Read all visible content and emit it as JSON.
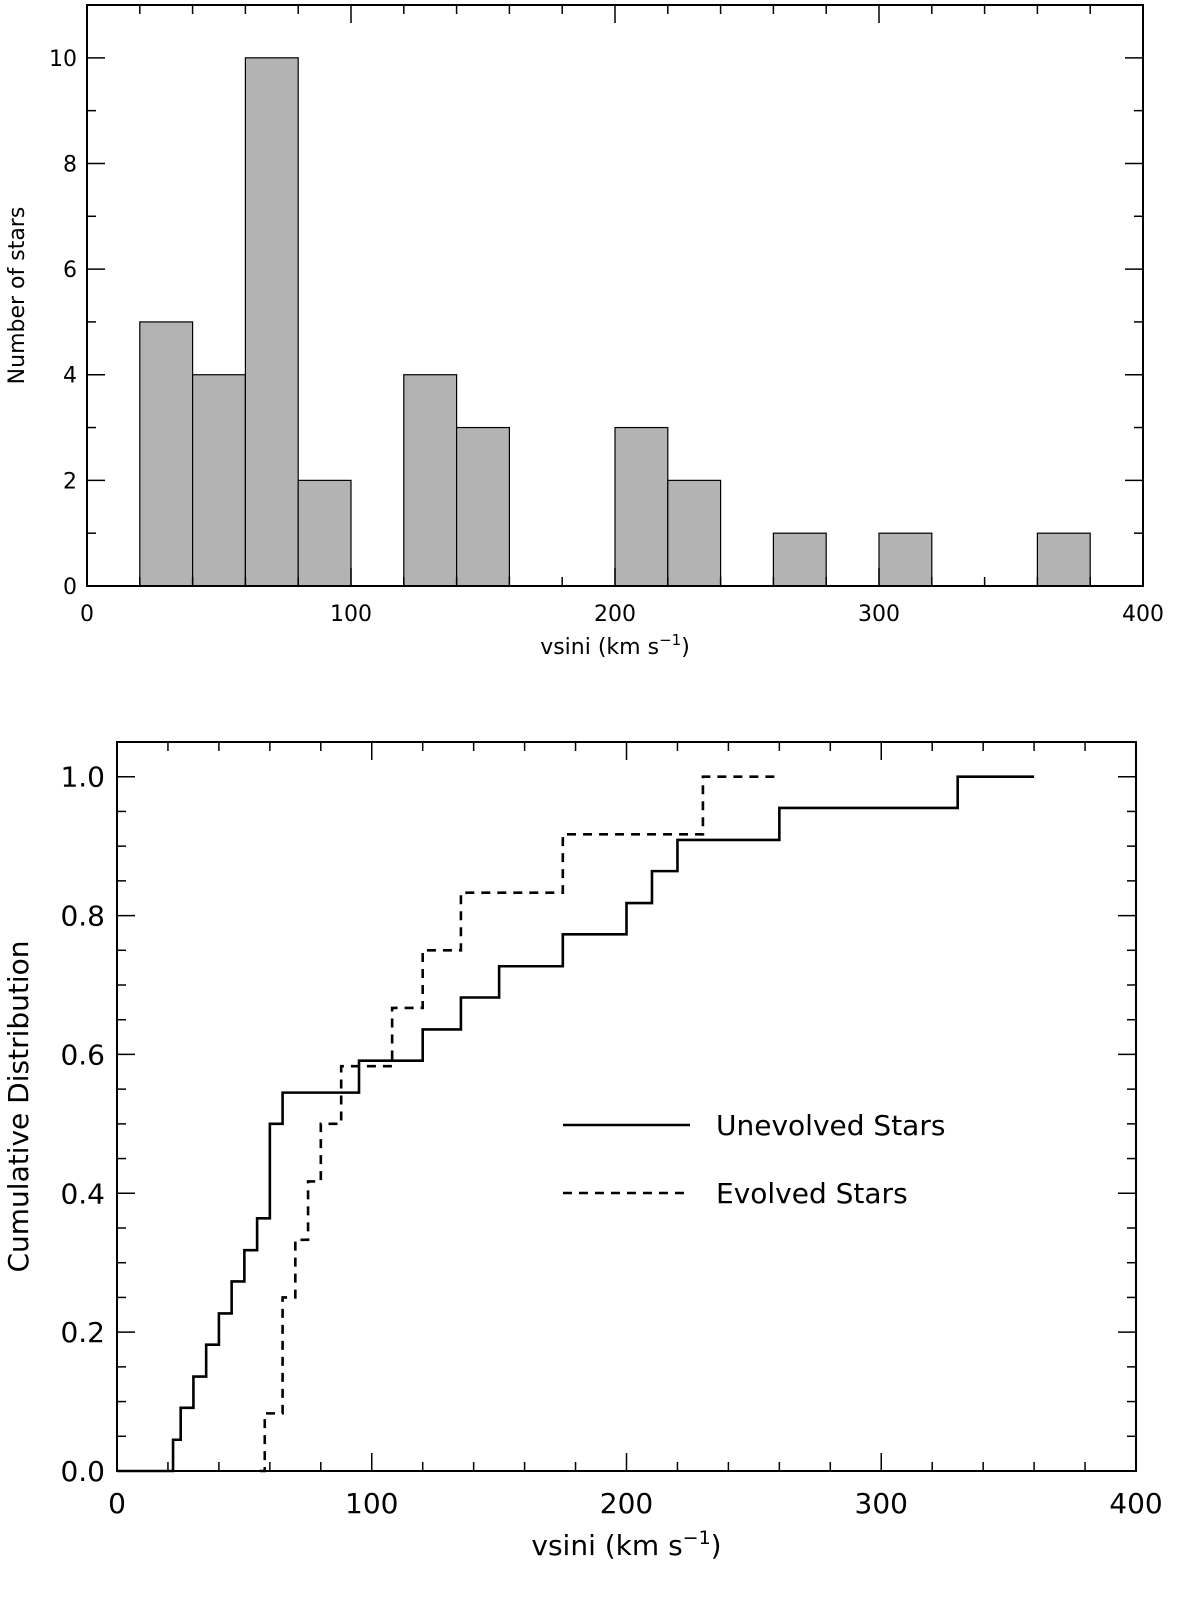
{
  "chart_data": [
    {
      "type": "bar",
      "subtype": "histogram",
      "xlabel": "vsini (km s",
      "xlabel_superscript": "−1",
      "xlabel_suffix": ")",
      "ylabel": "Number of stars",
      "xlim": [
        0,
        400
      ],
      "ylim": [
        0,
        11
      ],
      "xticks": [
        0,
        100,
        200,
        300,
        400
      ],
      "yticks": [
        0,
        2,
        4,
        6,
        8,
        10
      ],
      "bins": [
        {
          "x0": 20,
          "x1": 40,
          "count": 5
        },
        {
          "x0": 40,
          "x1": 60,
          "count": 4
        },
        {
          "x0": 60,
          "x1": 80,
          "count": 10
        },
        {
          "x0": 80,
          "x1": 100,
          "count": 2
        },
        {
          "x0": 120,
          "x1": 140,
          "count": 4
        },
        {
          "x0": 140,
          "x1": 160,
          "count": 3
        },
        {
          "x0": 200,
          "x1": 220,
          "count": 3
        },
        {
          "x0": 220,
          "x1": 240,
          "count": 2
        },
        {
          "x0": 260,
          "x1": 280,
          "count": 1
        },
        {
          "x0": 300,
          "x1": 320,
          "count": 1
        },
        {
          "x0": 360,
          "x1": 380,
          "count": 1
        }
      ]
    },
    {
      "type": "line",
      "subtype": "step-cdf",
      "xlabel": "vsini (km s",
      "xlabel_superscript": "−1",
      "xlabel_suffix": ")",
      "ylabel": "Cumulative Distribution",
      "xlim": [
        0,
        400
      ],
      "ylim": [
        0,
        1.05
      ],
      "xticks": [
        0,
        100,
        200,
        300,
        400
      ],
      "yticks": [
        0.0,
        0.2,
        0.4,
        0.6,
        0.8,
        1.0
      ],
      "ytick_labels": [
        "0.0",
        "0.2",
        "0.4",
        "0.6",
        "0.8",
        "1.0"
      ],
      "legend_position": "center-right",
      "series": [
        {
          "name": "Unevolved Stars",
          "style": "solid",
          "x": [
            0,
            20,
            22,
            25,
            30,
            35,
            40,
            45,
            50,
            55,
            60,
            65,
            95,
            120,
            135,
            150,
            175,
            200,
            210,
            220,
            260,
            330,
            360
          ],
          "y": [
            0,
            0,
            0.045,
            0.091,
            0.136,
            0.182,
            0.227,
            0.273,
            0.318,
            0.364,
            0.5,
            0.545,
            0.591,
            0.636,
            0.682,
            0.727,
            0.773,
            0.818,
            0.864,
            0.909,
            0.955,
            1.0,
            1.0
          ]
        },
        {
          "name": "Evolved Stars",
          "style": "dashed",
          "x": [
            56,
            58,
            60,
            65,
            70,
            72,
            75,
            80,
            88,
            108,
            120,
            135,
            175,
            230,
            260
          ],
          "y": [
            0,
            0.083,
            0.083,
            0.25,
            0.333,
            0.333,
            0.417,
            0.5,
            0.583,
            0.667,
            0.75,
            0.833,
            0.917,
            1.0,
            1.0
          ]
        }
      ]
    }
  ]
}
